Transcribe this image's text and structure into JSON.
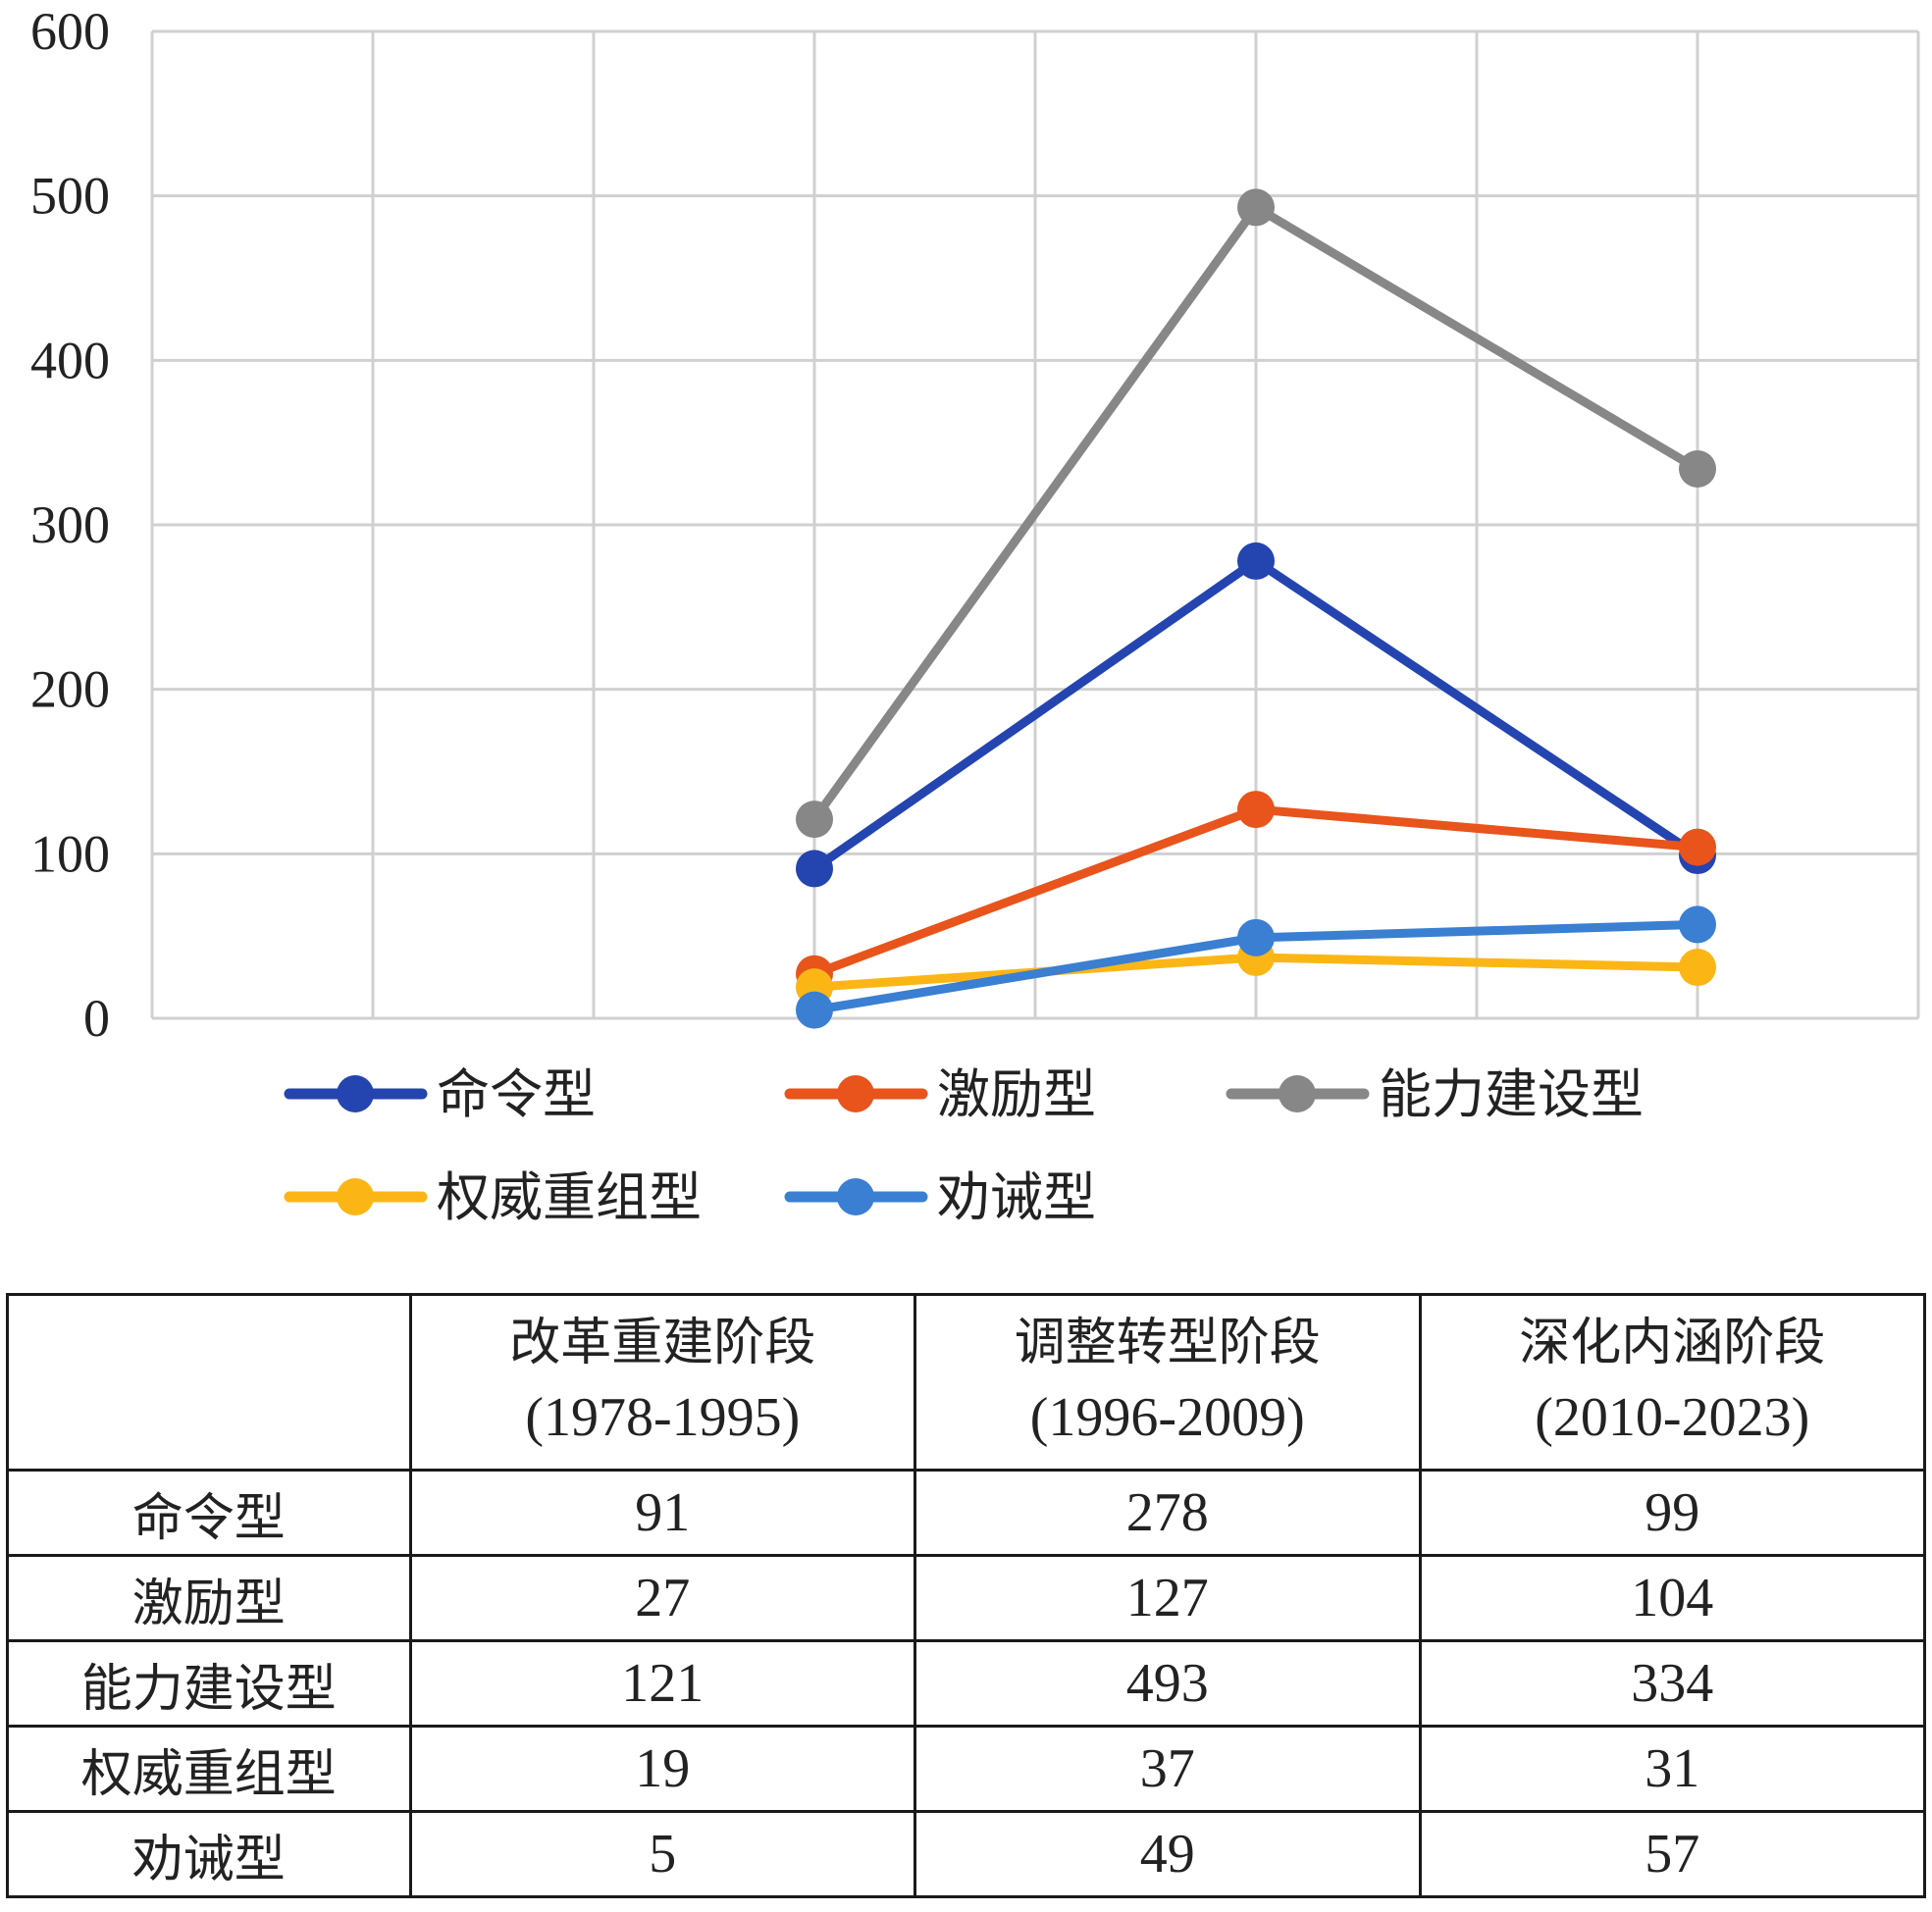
{
  "chart_data": {
    "type": "line",
    "categories": [
      "",
      "",
      "改革重建阶段(1978-1995)",
      "",
      "调整转型阶段(1996-2009)",
      "",
      "深化内涵阶段(2010-2023)",
      ""
    ],
    "x_tick_labels_shown": false,
    "ylim": [
      0,
      600
    ],
    "yticks": [
      0,
      100,
      200,
      300,
      400,
      500,
      600
    ],
    "grid": true,
    "legend_position": "bottom",
    "series": [
      {
        "name": "命令型",
        "color": "#2444b0",
        "values": [
          null,
          null,
          91,
          null,
          278,
          null,
          99,
          null
        ]
      },
      {
        "name": "激励型",
        "color": "#e8541c",
        "values": [
          null,
          null,
          27,
          null,
          127,
          null,
          104,
          null
        ]
      },
      {
        "name": "能力建设型",
        "color": "#878787",
        "values": [
          null,
          null,
          121,
          null,
          493,
          null,
          334,
          null
        ]
      },
      {
        "name": "权威重组型",
        "color": "#fbb616",
        "values": [
          null,
          null,
          19,
          null,
          37,
          null,
          31,
          null
        ]
      },
      {
        "name": "劝诫型",
        "color": "#3a7fd1",
        "values": [
          null,
          null,
          5,
          null,
          49,
          null,
          57,
          null
        ]
      }
    ]
  },
  "table": {
    "corner": "",
    "columns": [
      {
        "name": "改革重建阶段",
        "years": "(1978-1995)"
      },
      {
        "name": "调整转型阶段",
        "years": "(1996-2009)"
      },
      {
        "name": "深化内涵阶段",
        "years": "(2010-2023)"
      }
    ],
    "rows": [
      {
        "label": "命令型",
        "values": [
          "91",
          "278",
          "99"
        ]
      },
      {
        "label": "激励型",
        "values": [
          "27",
          "127",
          "104"
        ]
      },
      {
        "label": "能力建设型",
        "values": [
          "121",
          "493",
          "334"
        ]
      },
      {
        "label": "权威重组型",
        "values": [
          "19",
          "37",
          "31"
        ]
      },
      {
        "label": "劝诫型",
        "values": [
          "5",
          "49",
          "57"
        ]
      }
    ]
  }
}
